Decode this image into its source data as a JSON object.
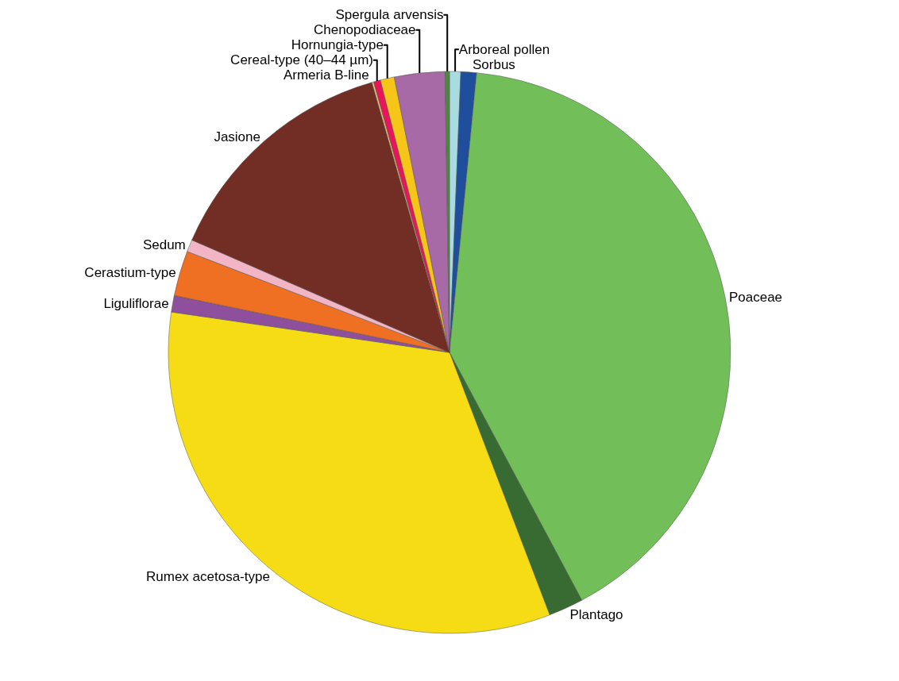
{
  "chart_data": {
    "type": "pie",
    "categories": [
      "Arboreal pollen",
      "Sorbus",
      "Poaceae",
      "Plantago",
      "Rumex acetosa-type",
      "Liguliflorae",
      "Cerastium-type",
      "Sedum",
      "Jasione",
      "Armeria B-line",
      "Cereal-type (40–44 µm)",
      "Hornungia-type",
      "Chenopodiaceae",
      "Spergula arvensis"
    ],
    "values": [
      0.64,
      0.9,
      40.66,
      2.0,
      33.1,
      0.95,
      2.6,
      0.7,
      14.0,
      0.1,
      0.4,
      0.8,
      2.9,
      0.25
    ],
    "colors": [
      "#a8dce0",
      "#1f4e9c",
      "#72bf5a",
      "#386b32",
      "#f5dc15",
      "#8e4f9c",
      "#ef6f23",
      "#f2b5c6",
      "#722d24",
      "#e8d070",
      "#e8155a",
      "#f5c518",
      "#a86aa6",
      "#4a8a3a"
    ],
    "legend": false
  }
}
